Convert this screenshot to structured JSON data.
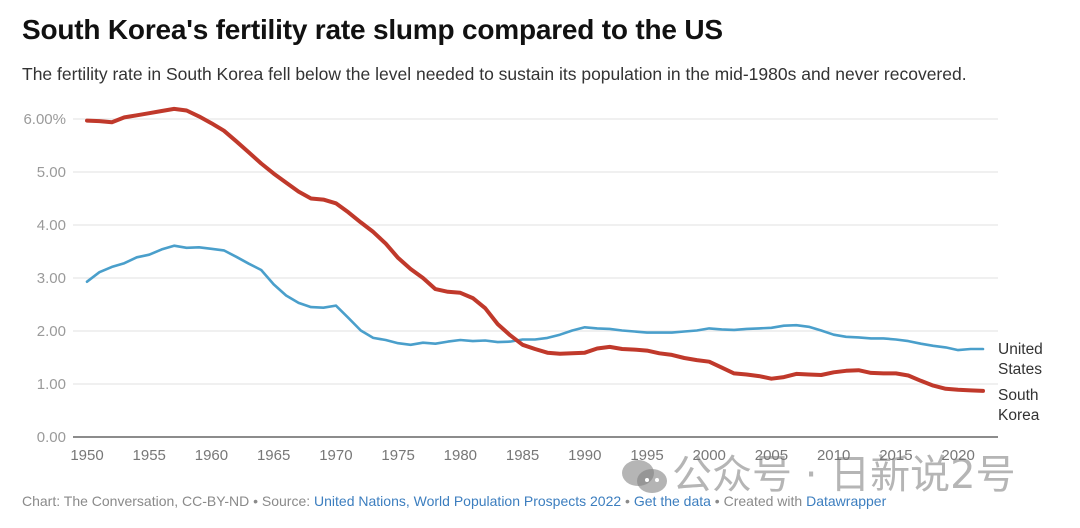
{
  "header": {
    "title": "South Korea's fertility rate slump compared to the US",
    "subtitle": "The fertility rate in South Korea fell below the level needed to sustain its population in the mid-1980s and never recovered."
  },
  "footer": {
    "prefix": "Chart: The Conversation, CC-BY-ND • Source: ",
    "source_link": "United Nations, World Population Prospects 2022",
    "sep1": " • ",
    "get_data_link": "Get the data",
    "sep2": " • Created with ",
    "tool_link": "Datawrapper"
  },
  "watermark": {
    "text": "公众号 · 日新说2号",
    "icon": "wechat-icon"
  },
  "colors": {
    "south_korea": "#c0392b",
    "united_states": "#4a9fcb",
    "grid": "#e6e6e6",
    "axis": "#666666"
  },
  "chart_data": {
    "type": "line",
    "title": "South Korea's fertility rate slump compared to the US",
    "xlabel": "",
    "ylabel": "",
    "xlim": [
      1950,
      2022
    ],
    "ylim": [
      0,
      6
    ],
    "grid": true,
    "legend": "inline-right",
    "y_ticks": [
      {
        "value": 0,
        "label": "0.00"
      },
      {
        "value": 1,
        "label": "1.00"
      },
      {
        "value": 2,
        "label": "2.00"
      },
      {
        "value": 3,
        "label": "3.00"
      },
      {
        "value": 4,
        "label": "4.00"
      },
      {
        "value": 5,
        "label": "5.00"
      },
      {
        "value": 6,
        "label": "6.00%"
      }
    ],
    "x_ticks": [
      1950,
      1955,
      1960,
      1965,
      1970,
      1975,
      1980,
      1985,
      1990,
      1995,
      2000,
      2005,
      2010,
      2015,
      2020
    ],
    "x": [
      1950,
      1951,
      1952,
      1953,
      1954,
      1955,
      1956,
      1957,
      1958,
      1959,
      1960,
      1961,
      1962,
      1963,
      1964,
      1965,
      1966,
      1967,
      1968,
      1969,
      1970,
      1971,
      1972,
      1973,
      1974,
      1975,
      1976,
      1977,
      1978,
      1979,
      1980,
      1981,
      1982,
      1983,
      1984,
      1985,
      1986,
      1987,
      1988,
      1989,
      1990,
      1991,
      1992,
      1993,
      1994,
      1995,
      1996,
      1997,
      1998,
      1999,
      2000,
      2001,
      2002,
      2003,
      2004,
      2005,
      2006,
      2007,
      2008,
      2009,
      2010,
      2011,
      2012,
      2013,
      2014,
      2015,
      2016,
      2017,
      2018,
      2019,
      2020,
      2021,
      2022
    ],
    "series": [
      {
        "name": "United States",
        "label_lines": [
          "United",
          "States"
        ],
        "color": "#4a9fcb",
        "values": [
          2.93,
          3.11,
          3.21,
          3.28,
          3.39,
          3.44,
          3.54,
          3.61,
          3.57,
          3.58,
          3.55,
          3.52,
          3.4,
          3.27,
          3.15,
          2.88,
          2.67,
          2.53,
          2.45,
          2.44,
          2.48,
          2.25,
          2.01,
          1.87,
          1.83,
          1.77,
          1.74,
          1.78,
          1.76,
          1.8,
          1.83,
          1.81,
          1.82,
          1.79,
          1.8,
          1.84,
          1.84,
          1.87,
          1.93,
          2.01,
          2.07,
          2.05,
          2.04,
          2.01,
          1.99,
          1.97,
          1.97,
          1.97,
          1.99,
          2.01,
          2.05,
          2.03,
          2.02,
          2.04,
          2.05,
          2.06,
          2.1,
          2.11,
          2.08,
          2.01,
          1.93,
          1.89,
          1.88,
          1.86,
          1.86,
          1.84,
          1.81,
          1.76,
          1.72,
          1.69,
          1.64,
          1.66,
          1.66
        ]
      },
      {
        "name": "South Korea",
        "label_lines": [
          "South",
          "Korea"
        ],
        "color": "#c0392b",
        "values": [
          5.97,
          5.96,
          5.94,
          6.03,
          6.07,
          6.11,
          6.15,
          6.19,
          6.16,
          6.05,
          5.92,
          5.78,
          5.58,
          5.37,
          5.16,
          4.97,
          4.8,
          4.63,
          4.5,
          4.48,
          4.41,
          4.24,
          4.05,
          3.87,
          3.65,
          3.38,
          3.17,
          3.0,
          2.79,
          2.74,
          2.72,
          2.62,
          2.43,
          2.13,
          1.92,
          1.74,
          1.66,
          1.59,
          1.57,
          1.58,
          1.59,
          1.67,
          1.7,
          1.66,
          1.65,
          1.63,
          1.58,
          1.55,
          1.49,
          1.45,
          1.42,
          1.31,
          1.2,
          1.18,
          1.15,
          1.1,
          1.13,
          1.19,
          1.18,
          1.17,
          1.22,
          1.25,
          1.26,
          1.21,
          1.2,
          1.2,
          1.16,
          1.06,
          0.97,
          0.91,
          0.89,
          0.88,
          0.87
        ]
      }
    ]
  }
}
